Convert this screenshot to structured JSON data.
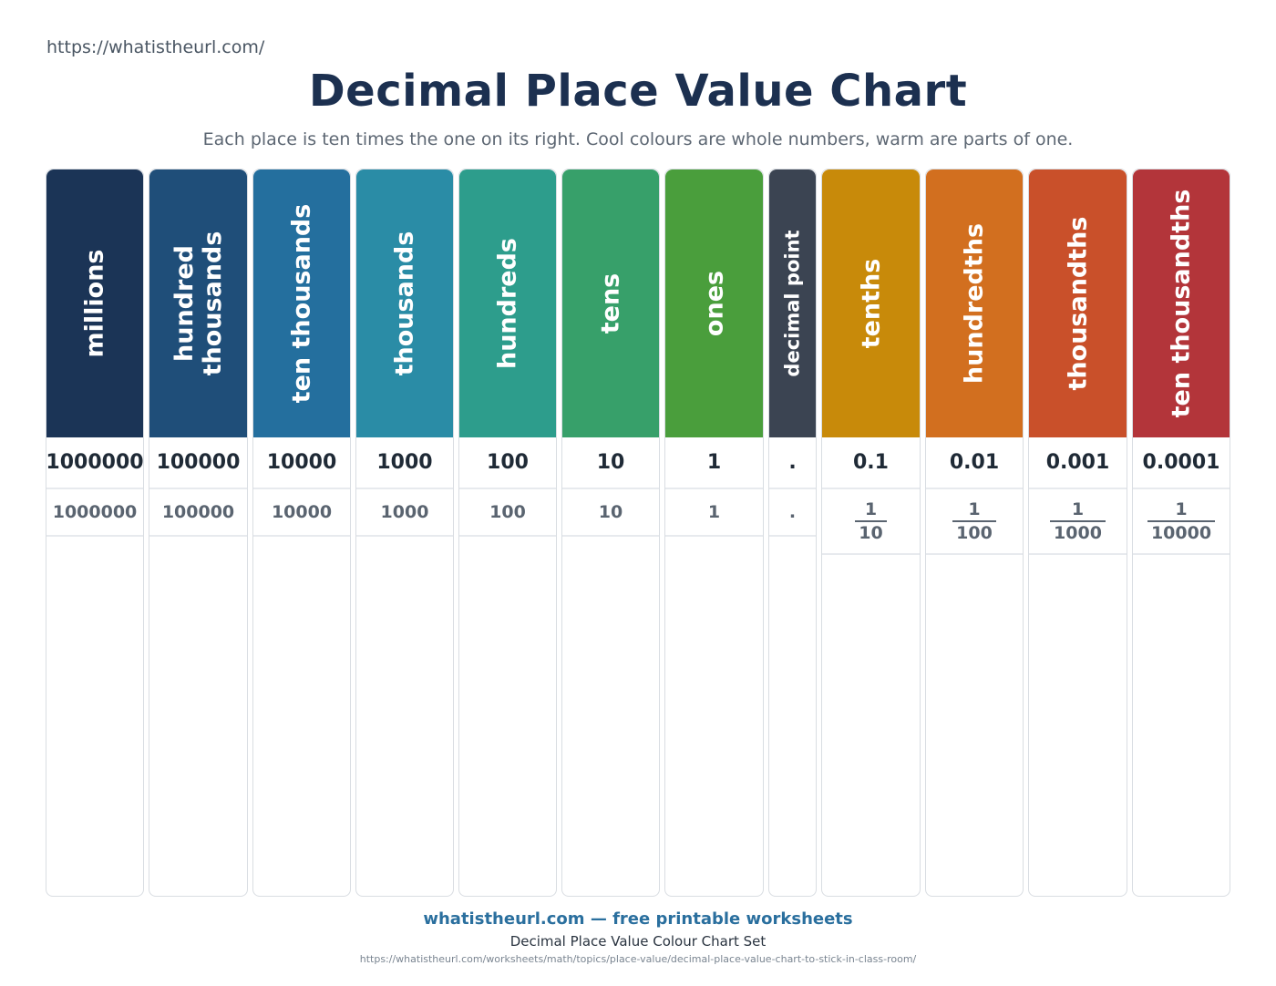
{
  "header": {
    "url": "https://whatistheurl.com/",
    "title": "Decimal Place Value Chart",
    "subtitle": "Each place is ten times the one on its right. Cool colours are whole numbers, warm are parts of one."
  },
  "columns": [
    {
      "name": "millions",
      "value": "1000000",
      "alt": "1000000",
      "color": "#1b3456"
    },
    {
      "name": "hundred thousands",
      "line1": "hundred",
      "line2": "thousands",
      "value": "100000",
      "alt": "100000",
      "color": "#1f4e79"
    },
    {
      "name": "ten thousands",
      "value": "10000",
      "alt": "10000",
      "color": "#246f9e"
    },
    {
      "name": "thousands",
      "value": "1000",
      "alt": "1000",
      "color": "#2a8ca6"
    },
    {
      "name": "hundreds",
      "value": "100",
      "alt": "100",
      "color": "#2d9d8c"
    },
    {
      "name": "tens",
      "value": "10",
      "alt": "10",
      "color": "#37a06a"
    },
    {
      "name": "ones",
      "value": "1",
      "alt": "1",
      "color": "#4a9e3c"
    },
    {
      "name": "decimal point",
      "value": ".",
      "alt": ".",
      "color": "#3b4452"
    },
    {
      "name": "tenths",
      "value": "0.1",
      "frac_num": "1",
      "frac_den": "10",
      "color": "#c88a0a"
    },
    {
      "name": "hundredths",
      "value": "0.01",
      "frac_num": "1",
      "frac_den": "100",
      "color": "#d26f1f"
    },
    {
      "name": "thousandths",
      "value": "0.001",
      "frac_num": "1",
      "frac_den": "1000",
      "color": "#c9502a"
    },
    {
      "name": "ten thousandths",
      "value": "0.0001",
      "frac_num": "1",
      "frac_den": "10000",
      "color": "#b3353a"
    }
  ],
  "footer": {
    "brand": "whatistheurl.com — free printable worksheets",
    "set_name": "Decimal Place Value Colour Chart Set",
    "url": "https://whatistheurl.com/worksheets/math/topics/place-value/decimal-place-value-chart-to-stick-in-class-room/"
  }
}
